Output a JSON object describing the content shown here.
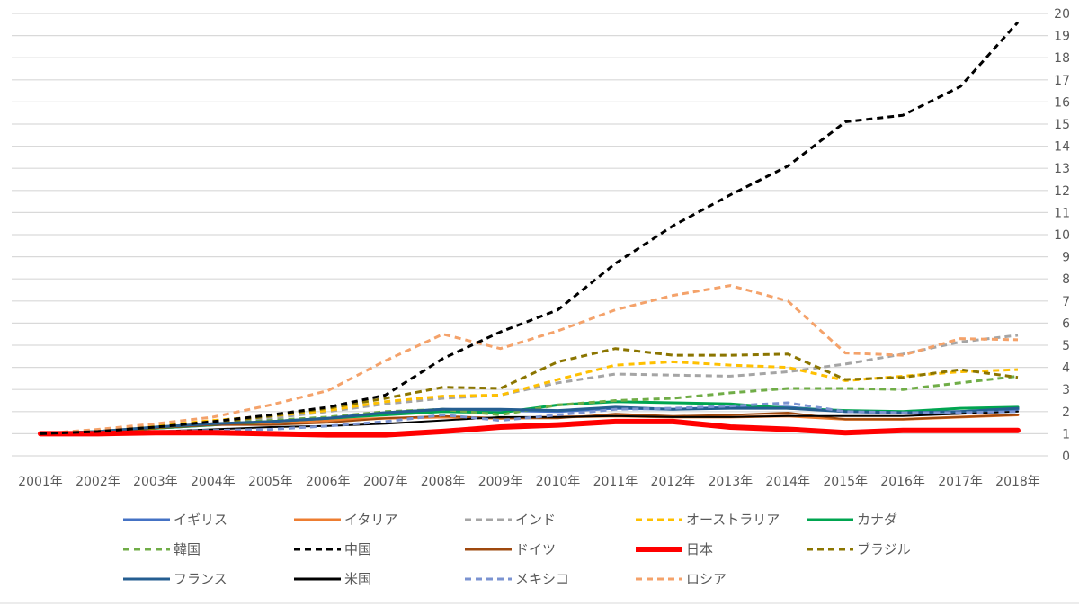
{
  "chart_data": {
    "type": "line",
    "title": "",
    "xlabel": "",
    "ylabel": "",
    "x": [
      "2001年",
      "2002年",
      "2003年",
      "2004年",
      "2005年",
      "2006年",
      "2007年",
      "2008年",
      "2009年",
      "2010年",
      "2011年",
      "2012年",
      "2013年",
      "2014年",
      "2015年",
      "2016年",
      "2017年",
      "2018年"
    ],
    "ylim": [
      0,
      20
    ],
    "yticks": [
      "0",
      "1",
      "2",
      "3",
      "4",
      "5",
      "6",
      "7",
      "8",
      "9",
      "10",
      "11",
      "12",
      "13",
      "14",
      "15",
      "16",
      "17",
      "18",
      "19",
      "20"
    ],
    "y_axis_position": "right",
    "grid": true,
    "legend_position": "bottom",
    "series": [
      {
        "name": "イギリス",
        "color": "#4472C4",
        "dash": "solid",
        "width": 3,
        "values": [
          1.0,
          1.1,
          1.25,
          1.4,
          1.55,
          1.7,
          1.95,
          2.1,
          2.05,
          2.0,
          2.15,
          2.1,
          2.2,
          2.2,
          2.0,
          1.95,
          2.0,
          2.1
        ]
      },
      {
        "name": "イタリア",
        "color": "#ED7D31",
        "dash": "solid",
        "width": 3,
        "values": [
          1.0,
          1.1,
          1.3,
          1.45,
          1.5,
          1.6,
          1.7,
          1.75,
          1.7,
          1.75,
          1.8,
          1.75,
          1.75,
          1.8,
          1.65,
          1.65,
          1.75,
          1.85
        ]
      },
      {
        "name": "インド",
        "color": "#A5A5A5",
        "dash": "dash",
        "width": 3,
        "values": [
          1.0,
          1.15,
          1.3,
          1.5,
          1.7,
          2.0,
          2.35,
          2.6,
          2.75,
          3.3,
          3.7,
          3.65,
          3.6,
          3.8,
          4.15,
          4.6,
          5.15,
          5.45
        ]
      },
      {
        "name": "オーストラリア",
        "color": "#FFC000",
        "dash": "dash",
        "width": 3,
        "values": [
          1.0,
          1.15,
          1.35,
          1.6,
          1.8,
          2.05,
          2.45,
          2.7,
          2.75,
          3.45,
          4.1,
          4.25,
          4.1,
          4.0,
          3.4,
          3.6,
          3.8,
          3.9
        ]
      },
      {
        "name": "カナダ",
        "color": "#00A550",
        "dash": "solid",
        "width": 3,
        "values": [
          1.0,
          1.1,
          1.25,
          1.4,
          1.55,
          1.7,
          1.85,
          2.0,
          1.95,
          2.3,
          2.45,
          2.4,
          2.35,
          2.15,
          2.05,
          2.0,
          2.15,
          2.2
        ]
      },
      {
        "name": "韓国",
        "color": "#70AD47",
        "dash": "dash",
        "width": 3,
        "values": [
          1.0,
          1.1,
          1.3,
          1.45,
          1.6,
          1.75,
          2.0,
          2.1,
          1.85,
          2.3,
          2.5,
          2.6,
          2.85,
          3.05,
          3.05,
          3.0,
          3.3,
          3.6
        ]
      },
      {
        "name": "中国",
        "color": "#000000",
        "dash": "dash",
        "width": 3,
        "values": [
          1.0,
          1.1,
          1.3,
          1.55,
          1.85,
          2.2,
          2.75,
          4.4,
          5.6,
          6.6,
          8.7,
          10.4,
          11.8,
          13.1,
          15.1,
          15.4,
          16.7,
          19.6
        ]
      },
      {
        "name": "ドイツ",
        "color": "#9E480E",
        "dash": "solid",
        "width": 2,
        "values": [
          1.0,
          1.1,
          1.25,
          1.4,
          1.4,
          1.5,
          1.7,
          1.8,
          1.7,
          1.7,
          1.9,
          1.8,
          1.85,
          1.95,
          1.65,
          1.65,
          1.75,
          1.85
        ]
      },
      {
        "name": "日本",
        "color": "#FF0000",
        "dash": "solid",
        "width": 6,
        "values": [
          1.0,
          1.0,
          1.05,
          1.05,
          1.0,
          0.95,
          0.95,
          1.1,
          1.3,
          1.4,
          1.55,
          1.55,
          1.3,
          1.2,
          1.05,
          1.15,
          1.15,
          1.15
        ]
      },
      {
        "name": "ブラジル",
        "color": "#8B7500",
        "dash": "dash",
        "width": 3,
        "values": [
          1.0,
          1.1,
          1.25,
          1.5,
          1.8,
          2.15,
          2.6,
          3.1,
          3.05,
          4.25,
          4.85,
          4.55,
          4.55,
          4.6,
          3.45,
          3.55,
          3.9,
          3.55
        ]
      },
      {
        "name": "フランス",
        "color": "#255E91",
        "dash": "solid",
        "width": 3,
        "values": [
          1.0,
          1.1,
          1.3,
          1.45,
          1.55,
          1.7,
          1.95,
          2.1,
          2.1,
          2.05,
          2.2,
          2.1,
          2.15,
          2.15,
          2.0,
          1.95,
          2.0,
          2.15
        ]
      },
      {
        "name": "米国",
        "color": "#000000",
        "dash": "solid",
        "width": 2,
        "values": [
          1.0,
          1.05,
          1.1,
          1.2,
          1.3,
          1.35,
          1.45,
          1.6,
          1.75,
          1.75,
          1.8,
          1.75,
          1.75,
          1.8,
          1.8,
          1.8,
          1.9,
          2.0
        ]
      },
      {
        "name": "メキシコ",
        "color": "#7B93D1",
        "dash": "dash",
        "width": 3,
        "values": [
          1.0,
          1.05,
          1.1,
          1.15,
          1.2,
          1.35,
          1.55,
          1.85,
          1.6,
          1.85,
          2.1,
          2.15,
          2.25,
          2.4,
          2.0,
          1.95,
          1.95,
          2.0
        ]
      },
      {
        "name": "ロシア",
        "color": "#F4A26A",
        "dash": "dash",
        "width": 3,
        "values": [
          1.0,
          1.2,
          1.45,
          1.75,
          2.3,
          2.95,
          4.3,
          5.5,
          4.85,
          5.65,
          6.6,
          7.25,
          7.7,
          7.0,
          4.65,
          4.55,
          5.3,
          5.25
        ]
      }
    ]
  }
}
